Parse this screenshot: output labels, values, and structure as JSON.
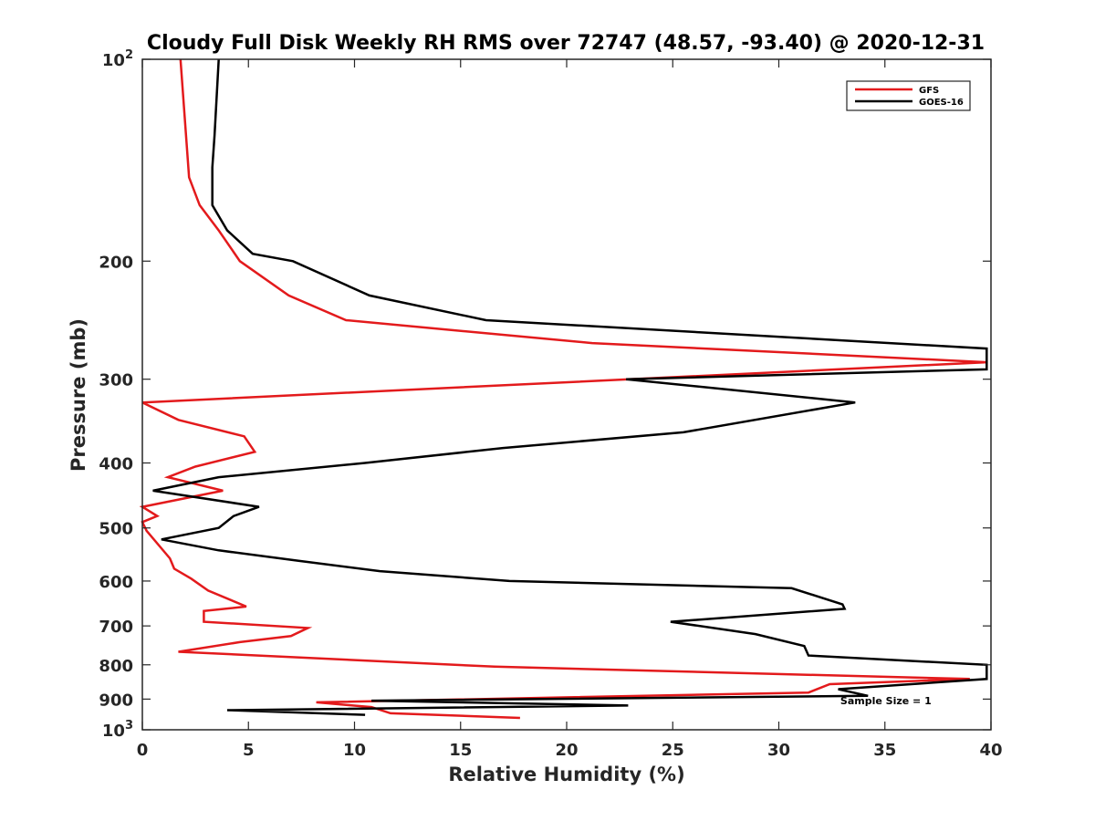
{
  "chart_data": {
    "type": "line",
    "title": "Cloudy Full Disk Weekly RH RMS over 72747 (48.57, -93.40) @ 2020-12-31",
    "xlabel": "Relative Humidity (%)",
    "ylabel": "Pressure (mb)",
    "xlim": [
      0,
      40
    ],
    "ylim": [
      100,
      1000
    ],
    "yscale": "log",
    "y_reversed": true,
    "grid": false,
    "legend_position": "top-right",
    "x_ticks": [
      0,
      5,
      10,
      15,
      20,
      25,
      30,
      35,
      40
    ],
    "x_tick_labels": [
      "0",
      "5",
      "10",
      "15",
      "20",
      "25",
      "30",
      "35",
      "40"
    ],
    "y_ticks": [
      100,
      200,
      300,
      400,
      500,
      600,
      700,
      800,
      900,
      1000
    ],
    "y_tick_labels": [
      {
        "base": "10",
        "exp": "2"
      },
      {
        "base": "200",
        "exp": ""
      },
      {
        "base": "300",
        "exp": ""
      },
      {
        "base": "400",
        "exp": ""
      },
      {
        "base": "500",
        "exp": ""
      },
      {
        "base": "600",
        "exp": ""
      },
      {
        "base": "700",
        "exp": ""
      },
      {
        "base": "800",
        "exp": ""
      },
      {
        "base": "900",
        "exp": ""
      },
      {
        "base": "10",
        "exp": "3"
      }
    ],
    "annotation": {
      "text": "Sample Size = 1",
      "x": 32.9,
      "y": 905
    },
    "series": [
      {
        "name": "GFS",
        "color": "#e31a1c",
        "x": [
          1.8,
          2.2,
          2.7,
          3.6,
          4.6,
          6.9,
          9.6,
          21.2,
          39.8,
          0.0,
          1.7,
          4.8,
          5.3,
          2.5,
          1.2,
          3.8,
          0.0,
          0.7,
          0.0,
          0.2,
          1.3,
          1.5,
          2.3,
          3.1,
          4.9,
          2.9,
          2.9,
          7.8,
          7.0,
          4.6,
          1.7,
          16.6,
          39.0,
          32.4,
          31.4,
          8.2,
          10.8,
          11.7,
          17.8
        ],
        "y": [
          100,
          150,
          165,
          180,
          200,
          225,
          245,
          265,
          283,
          325,
          345,
          365,
          385,
          405,
          420,
          440,
          465,
          480,
          490,
          505,
          555,
          575,
          595,
          620,
          655,
          665,
          690,
          705,
          725,
          740,
          765,
          805,
          840,
          855,
          880,
          910,
          925,
          945,
          960
        ]
      },
      {
        "name": "GOES-16",
        "color": "#000000",
        "x": [
          3.6,
          3.4,
          3.3,
          3.3,
          4.0,
          5.2,
          7.1,
          10.7,
          16.2,
          39.8,
          39.8,
          22.8,
          33.6,
          25.5,
          17.0,
          10.5,
          3.6,
          0.5,
          5.5,
          4.3,
          3.6,
          0.9,
          3.6,
          7.4,
          11.2,
          17.3,
          30.6,
          33.0,
          33.1,
          24.9,
          28.9,
          31.2,
          31.4,
          39.8,
          39.8,
          32.8,
          34.2,
          10.8,
          22.9,
          4.0,
          10.5
        ],
        "y": [
          100,
          130,
          145,
          165,
          180,
          195,
          200,
          225,
          245,
          270,
          290,
          300,
          325,
          360,
          380,
          400,
          420,
          440,
          465,
          480,
          500,
          520,
          540,
          560,
          580,
          600,
          615,
          650,
          660,
          690,
          720,
          750,
          775,
          800,
          840,
          870,
          890,
          905,
          920,
          935,
          950
        ]
      }
    ]
  }
}
